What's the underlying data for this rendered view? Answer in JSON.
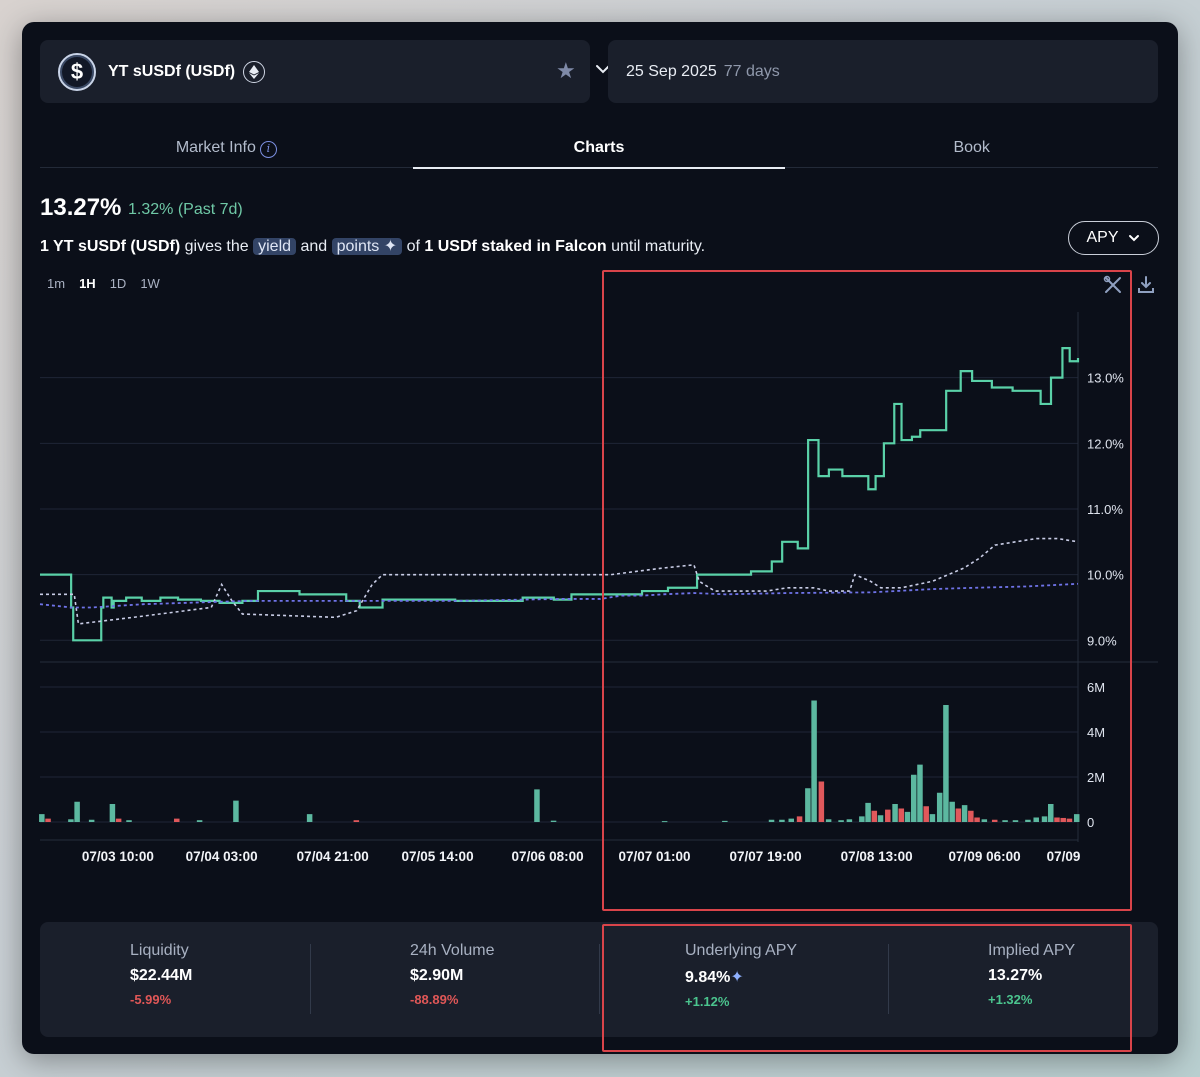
{
  "market": {
    "name": "YT sUSDf (USDf)",
    "logo_glyph": "$",
    "chain_icon": "ethereum-icon",
    "expiry_date": "25 Sep 2025",
    "days_left": "77 days"
  },
  "tabs": [
    {
      "label": "Market Info",
      "active": false
    },
    {
      "label": "Charts",
      "active": true
    },
    {
      "label": "Book",
      "active": false
    }
  ],
  "summary": {
    "apy": "13.27%",
    "change": "1.32% (Past 7d)",
    "desc_prefix": "1 YT sUSDf (USDf)",
    "desc_gives": " gives the ",
    "pill_yield": "yield",
    "desc_and": " and ",
    "pill_points": "points",
    "desc_of": " of ",
    "desc_stake": "1 USDf staked in Falcon",
    "desc_suffix": " until maturity."
  },
  "apy_toggle": {
    "label": "APY"
  },
  "intervals": [
    {
      "label": "1m",
      "active": false
    },
    {
      "label": "1H",
      "active": true
    },
    {
      "label": "1D",
      "active": false
    },
    {
      "label": "1W",
      "active": false
    }
  ],
  "colors": {
    "implied": "#5ad1a8",
    "underlying": "#6f73e8",
    "third_series": "#c9cde6",
    "vol_up": "#5cb8a0",
    "vol_down": "#e0585b",
    "highlight": "#d9444a"
  },
  "chart_data": {
    "type": "line",
    "price": {
      "y_ticks": [
        "13.0%",
        "12.0%",
        "11.0%",
        "10.0%",
        "9.0%"
      ],
      "y_tick_values": [
        13,
        12,
        11,
        10,
        9
      ],
      "ylim": [
        8.7,
        14.0
      ],
      "x_range": [
        0,
        100
      ],
      "series": [
        {
          "style": "solid-step",
          "x": [
            0,
            3,
            3.2,
            5.9,
            6.1,
            6.9,
            7.1,
            8.3,
            9.8,
            11.6,
            13.3,
            15.5,
            17.3,
            19.5,
            21,
            22.5,
            25,
            29.5,
            30.8,
            33,
            36,
            40,
            43,
            46.5,
            49.5,
            51.2,
            54.6,
            58,
            60.5,
            63.3,
            66,
            68.5,
            70.5,
            71.5,
            73,
            74,
            75,
            76,
            76.6,
            77.3,
            79.8,
            80.5,
            81.3,
            82.3,
            83,
            84,
            84.8,
            87.3,
            88.7,
            89.8,
            91.7,
            93.7,
            96.4,
            97.4,
            98.5,
            99.2,
            100
          ],
          "y": [
            10.0,
            9.5,
            9.0,
            9.5,
            9.65,
            9.5,
            9.6,
            9.65,
            9.6,
            9.65,
            9.62,
            9.6,
            9.57,
            9.6,
            9.75,
            9.75,
            9.7,
            9.6,
            9.5,
            9.62,
            9.62,
            9.6,
            9.6,
            9.65,
            9.62,
            9.7,
            9.7,
            9.75,
            9.8,
            10.0,
            10.0,
            10.05,
            10.2,
            10.5,
            10.4,
            12.05,
            11.5,
            11.6,
            11.6,
            11.5,
            11.3,
            11.5,
            12.0,
            12.6,
            12.05,
            12.1,
            12.2,
            12.8,
            13.1,
            12.95,
            12.85,
            12.8,
            12.6,
            13.0,
            13.45,
            13.25,
            13.3
          ]
        },
        {
          "style": "dashed",
          "x": [
            0,
            3.3,
            3.7,
            9,
            16.5,
            17.5,
            18.5,
            19.5,
            28.5,
            30.5,
            32,
            33,
            44,
            55,
            60,
            63,
            63.5,
            65,
            68,
            70,
            72,
            74.5,
            76,
            78,
            78.5,
            80,
            81,
            82,
            83,
            86,
            89,
            90.5,
            92,
            94,
            96,
            98,
            100
          ],
          "y": [
            9.7,
            9.7,
            9.25,
            9.35,
            9.5,
            9.85,
            9.6,
            9.4,
            9.35,
            9.45,
            9.85,
            10.0,
            10.0,
            10.0,
            10.1,
            10.15,
            9.9,
            9.75,
            9.75,
            9.75,
            9.8,
            9.8,
            9.75,
            9.75,
            10.0,
            9.9,
            9.8,
            9.8,
            9.8,
            9.9,
            10.1,
            10.25,
            10.45,
            10.5,
            10.55,
            10.55,
            10.5
          ]
        },
        {
          "style": "dashed",
          "x": [
            0,
            3,
            5,
            10,
            20,
            30,
            40,
            50,
            54,
            56,
            58,
            60,
            63,
            66,
            72,
            80,
            86,
            90,
            95,
            100
          ],
          "y": [
            9.55,
            9.5,
            9.5,
            9.55,
            9.6,
            9.6,
            9.6,
            9.63,
            9.63,
            9.68,
            9.68,
            9.7,
            9.72,
            9.7,
            9.72,
            9.73,
            9.78,
            9.8,
            9.82,
            9.86
          ]
        }
      ]
    },
    "volume": {
      "type": "bar",
      "y_ticks": [
        "6M",
        "4M",
        "2M",
        "0"
      ],
      "y_tick_values": [
        6,
        4,
        2,
        0
      ],
      "ylim": [
        0,
        6
      ],
      "unit": "M",
      "bars": [
        {
          "x": 0.2,
          "v": 0.35,
          "up": true
        },
        {
          "x": 0.8,
          "v": 0.15,
          "up": false
        },
        {
          "x": 3.0,
          "v": 0.12,
          "up": true
        },
        {
          "x": 3.6,
          "v": 0.9,
          "up": true
        },
        {
          "x": 5.0,
          "v": 0.1,
          "up": true
        },
        {
          "x": 7.0,
          "v": 0.8,
          "up": true
        },
        {
          "x": 7.6,
          "v": 0.15,
          "up": false
        },
        {
          "x": 8.6,
          "v": 0.08,
          "up": true
        },
        {
          "x": 13.2,
          "v": 0.15,
          "up": false
        },
        {
          "x": 15.4,
          "v": 0.08,
          "up": true
        },
        {
          "x": 18.9,
          "v": 0.95,
          "up": true
        },
        {
          "x": 26.0,
          "v": 0.35,
          "up": true
        },
        {
          "x": 30.5,
          "v": 0.08,
          "up": false
        },
        {
          "x": 47.9,
          "v": 1.45,
          "up": true
        },
        {
          "x": 49.5,
          "v": 0.06,
          "up": true
        },
        {
          "x": 60.2,
          "v": 0.04,
          "up": true
        },
        {
          "x": 66.0,
          "v": 0.05,
          "up": true
        },
        {
          "x": 70.5,
          "v": 0.1,
          "up": true
        },
        {
          "x": 71.5,
          "v": 0.1,
          "up": true
        },
        {
          "x": 72.4,
          "v": 0.15,
          "up": true
        },
        {
          "x": 73.2,
          "v": 0.25,
          "up": false
        },
        {
          "x": 74.0,
          "v": 1.5,
          "up": true
        },
        {
          "x": 74.6,
          "v": 5.4,
          "up": true
        },
        {
          "x": 75.3,
          "v": 1.8,
          "up": false
        },
        {
          "x": 76.0,
          "v": 0.12,
          "up": true
        },
        {
          "x": 77.2,
          "v": 0.08,
          "up": true
        },
        {
          "x": 78.0,
          "v": 0.12,
          "up": true
        },
        {
          "x": 79.2,
          "v": 0.25,
          "up": true
        },
        {
          "x": 79.8,
          "v": 0.85,
          "up": true
        },
        {
          "x": 80.4,
          "v": 0.5,
          "up": false
        },
        {
          "x": 81.0,
          "v": 0.3,
          "up": true
        },
        {
          "x": 81.7,
          "v": 0.55,
          "up": false
        },
        {
          "x": 82.4,
          "v": 0.8,
          "up": true
        },
        {
          "x": 83.0,
          "v": 0.6,
          "up": false
        },
        {
          "x": 83.6,
          "v": 0.45,
          "up": true
        },
        {
          "x": 84.2,
          "v": 2.1,
          "up": true
        },
        {
          "x": 84.8,
          "v": 2.55,
          "up": true
        },
        {
          "x": 85.4,
          "v": 0.7,
          "up": false
        },
        {
          "x": 86.0,
          "v": 0.35,
          "up": true
        },
        {
          "x": 86.7,
          "v": 1.3,
          "up": true
        },
        {
          "x": 87.3,
          "v": 5.2,
          "up": true
        },
        {
          "x": 87.9,
          "v": 0.9,
          "up": true
        },
        {
          "x": 88.5,
          "v": 0.6,
          "up": false
        },
        {
          "x": 89.1,
          "v": 0.75,
          "up": true
        },
        {
          "x": 89.7,
          "v": 0.5,
          "up": false
        },
        {
          "x": 90.3,
          "v": 0.2,
          "up": false
        },
        {
          "x": 91.0,
          "v": 0.12,
          "up": true
        },
        {
          "x": 92.0,
          "v": 0.1,
          "up": false
        },
        {
          "x": 93.0,
          "v": 0.08,
          "up": true
        },
        {
          "x": 94.0,
          "v": 0.08,
          "up": true
        },
        {
          "x": 95.2,
          "v": 0.1,
          "up": true
        },
        {
          "x": 96.0,
          "v": 0.2,
          "up": true
        },
        {
          "x": 96.8,
          "v": 0.25,
          "up": true
        },
        {
          "x": 97.4,
          "v": 0.8,
          "up": true
        },
        {
          "x": 98.0,
          "v": 0.2,
          "up": false
        },
        {
          "x": 98.6,
          "v": 0.18,
          "up": false
        },
        {
          "x": 99.2,
          "v": 0.15,
          "up": false
        },
        {
          "x": 99.9,
          "v": 0.35,
          "up": true
        }
      ]
    },
    "x_ticks": [
      {
        "label": "07/03 10:00",
        "x": 7.5
      },
      {
        "label": "07/04 03:00",
        "x": 17.5
      },
      {
        "label": "07/04 21:00",
        "x": 28.2
      },
      {
        "label": "07/05 14:00",
        "x": 38.3
      },
      {
        "label": "07/06 08:00",
        "x": 48.9
      },
      {
        "label": "07/07 01:00",
        "x": 59.2
      },
      {
        "label": "07/07 19:00",
        "x": 69.9
      },
      {
        "label": "07/08 13:00",
        "x": 80.6
      },
      {
        "label": "07/09 06:00",
        "x": 91.0
      },
      {
        "label": "07/09",
        "x": 98.6
      }
    ]
  },
  "stats": [
    {
      "label": "Liquidity",
      "value": "$22.44M",
      "delta": "-5.99%",
      "positive": false,
      "sparkle": false
    },
    {
      "label": "24h Volume",
      "value": "$2.90M",
      "delta": "-88.89%",
      "positive": false,
      "sparkle": false
    },
    {
      "label": "Underlying APY",
      "value": "9.84%",
      "delta": "+1.12%",
      "positive": true,
      "sparkle": true
    },
    {
      "label": "Implied APY",
      "value": "13.27%",
      "delta": "+1.32%",
      "positive": true,
      "sparkle": false
    }
  ]
}
